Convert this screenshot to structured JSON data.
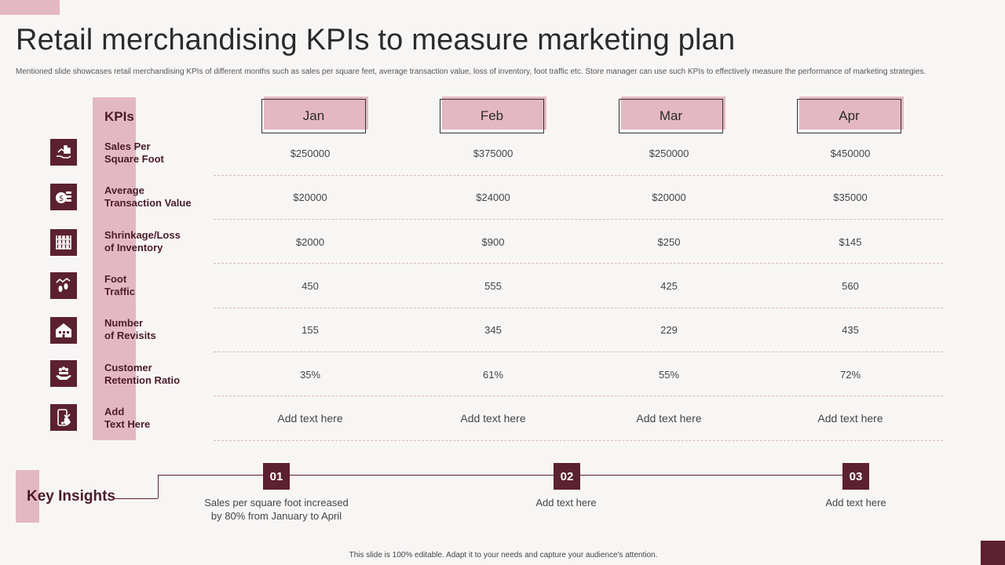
{
  "title": "Retail merchandising KPIs to measure marketing plan",
  "subtitle": "Mentioned slide showcases retail merchandising KPIs  of different months such as sales per square feet, average transaction value, loss of inventory, foot traffic etc. Store manager can use such KPIs to effectively measure the performance of marketing strategies.",
  "table": {
    "kpi_header": "KPIs",
    "months": [
      "Jan",
      "Feb",
      "Mar",
      "Apr"
    ],
    "rows": [
      {
        "icon": "sales-per-square-foot-icon",
        "label_line1": "Sales Per",
        "label_line2": "Square Foot",
        "values": [
          "$250000",
          "$375000",
          "$250000",
          "$450000"
        ]
      },
      {
        "icon": "transaction-value-icon",
        "label_line1": "Average",
        "label_line2": "Transaction Value",
        "values": [
          "$20000",
          "$24000",
          "$20000",
          "$35000"
        ]
      },
      {
        "icon": "inventory-shelf-icon",
        "label_line1": "Shrinkage/Loss",
        "label_line2": "of Inventory",
        "values": [
          "$2000",
          "$900",
          "$250",
          "$145"
        ]
      },
      {
        "icon": "foot-traffic-icon",
        "label_line1": "Foot",
        "label_line2": "Traffic",
        "values": [
          "450",
          "555",
          "425",
          "560"
        ]
      },
      {
        "icon": "store-revisits-icon",
        "label_line1": "Number",
        "label_line2": "of Revisits",
        "values": [
          "155",
          "345",
          "229",
          "435"
        ]
      },
      {
        "icon": "customer-retention-icon",
        "label_line1": "Customer",
        "label_line2": "Retention Ratio",
        "values": [
          "35%",
          "61%",
          "55%",
          "72%"
        ]
      },
      {
        "icon": "mobile-touch-icon",
        "label_line1": "Add",
        "label_line2": "Text Here",
        "values": [
          "Add text here",
          "Add text here",
          "Add text here",
          "Add text here"
        ]
      }
    ]
  },
  "key_insights": {
    "label": "Key Insights",
    "items": [
      {
        "number": "01",
        "line1": "Sales per square foot increased",
        "line2": "by 80% from January  to April"
      },
      {
        "number": "02",
        "line1": "Add text here",
        "line2": ""
      },
      {
        "number": "03",
        "line1": "Add text here",
        "line2": ""
      }
    ]
  },
  "footer": "This slide is 100% editable.  Adapt it to your needs and capture your audience's attention.",
  "colors": {
    "accent_pink": "#e4b8c3",
    "maroon": "#5b2130",
    "background": "#f8f6f5"
  }
}
